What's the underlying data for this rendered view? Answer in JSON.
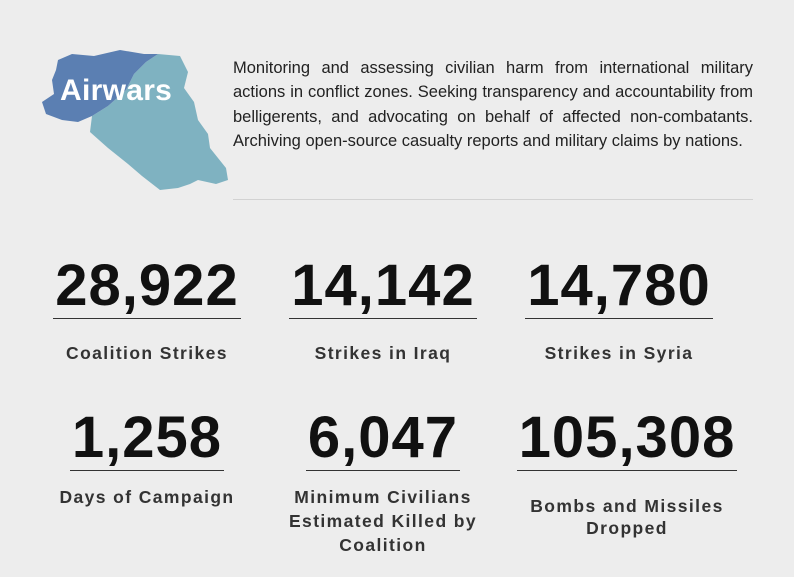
{
  "logo": {
    "text": "Airwars",
    "colors": {
      "iraq": "#7fb2c1",
      "syria": "#5b7fb2",
      "text": "#ffffff"
    }
  },
  "description": "Monitoring and assessing civilian harm from international military actions in conflict zones. Seeking transparency and accountability from belligerents, and advocating on behalf of affected non-combatants. Archiving open-source casualty reports and military claims by nations.",
  "stats": [
    {
      "value": "28,922",
      "label": "Coalition Strikes"
    },
    {
      "value": "14,142",
      "label": "Strikes in Iraq"
    },
    {
      "value": "14,780",
      "label": "Strikes in Syria"
    },
    {
      "value": "1,258",
      "label": "Days of Campaign"
    },
    {
      "value": "6,047",
      "label": "Minimum Civilians Estimated Killed by Coalition"
    },
    {
      "value": "105,308",
      "label": "Bombs and Missiles Dropped"
    }
  ]
}
